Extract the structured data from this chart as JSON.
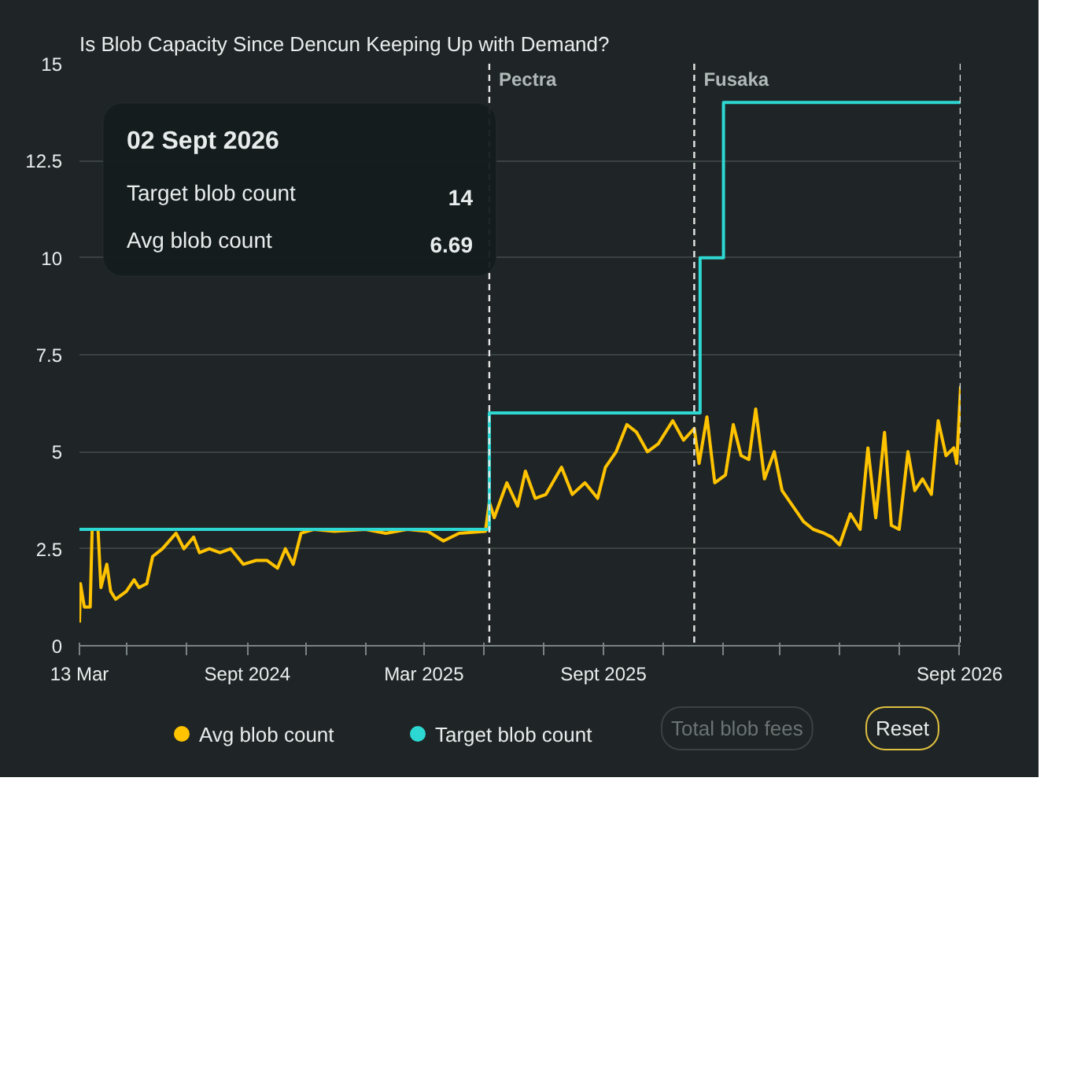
{
  "chart_data": {
    "type": "line",
    "title": "Is Blob Capacity Since Dencun Keeping Up with Demand?",
    "xlim": [
      "2024-03-13",
      "2026-09-02"
    ],
    "xticks": [
      {
        "value": "2024-03-13",
        "label": "13 Mar"
      },
      {
        "value": "2024-05-01",
        "label": null
      },
      {
        "value": "2024-07-01",
        "label": null
      },
      {
        "value": "2024-09-01",
        "label": "Sept 2024"
      },
      {
        "value": "2024-11-01",
        "label": null
      },
      {
        "value": "2025-01-01",
        "label": null
      },
      {
        "value": "2025-03-01",
        "label": "Mar 2025"
      },
      {
        "value": "2025-05-01",
        "label": null
      },
      {
        "value": "2025-07-01",
        "label": null
      },
      {
        "value": "2025-09-01",
        "label": "Sept 2025"
      },
      {
        "value": "2025-11-01",
        "label": null
      },
      {
        "value": "2026-01-01",
        "label": null
      },
      {
        "value": "2026-03-01",
        "label": null
      },
      {
        "value": "2026-05-01",
        "label": null
      },
      {
        "value": "2026-07-01",
        "label": null
      },
      {
        "value": "2026-09-01",
        "label": "Sept 2026"
      }
    ],
    "ylim": [
      0,
      15
    ],
    "yticks": [
      0,
      2.5,
      5,
      7.5,
      10,
      12.5,
      15
    ],
    "grid": "y",
    "legend": "bottom",
    "ref_lines": [
      {
        "axis": "x",
        "value": "2025-05-07",
        "label": "Pectra",
        "color": "#e6e6e6",
        "line_style": "dashed"
      },
      {
        "axis": "x",
        "value": "2025-12-03",
        "label": "Fusaka",
        "color": "#e6e6e6",
        "line_style": "dashed"
      },
      {
        "axis": "x",
        "value": "2026-09-02",
        "label": null,
        "color": "#e6e6e6",
        "line_style": "dashed"
      }
    ],
    "annotations": [
      "02 Sept 2026",
      "Target blob count",
      "14",
      "Avg blob count",
      "6.69",
      "Total blob fees",
      "Reset"
    ],
    "series": [
      {
        "name": "Avg blob count",
        "color": "#ffc300",
        "type": "line",
        "x": [
          "2024-03-13",
          "2024-03-14",
          "2024-03-18",
          "2024-03-24",
          "2024-03-26",
          "2024-04-01",
          "2024-04-04",
          "2024-04-10",
          "2024-04-14",
          "2024-04-19",
          "2024-04-30",
          "2024-05-08",
          "2024-05-13",
          "2024-05-21",
          "2024-05-27",
          "2024-06-06",
          "2024-06-20",
          "2024-06-28",
          "2024-07-08",
          "2024-07-14",
          "2024-07-24",
          "2024-08-04",
          "2024-08-15",
          "2024-08-28",
          "2024-09-10",
          "2024-09-21",
          "2024-10-02",
          "2024-10-10",
          "2024-10-18",
          "2024-10-26",
          "2024-11-08",
          "2024-11-29",
          "2024-12-31",
          "2025-01-21",
          "2025-02-12",
          "2025-03-05",
          "2025-03-21",
          "2025-04-06",
          "2025-05-03",
          "2025-05-07",
          "2025-05-12",
          "2025-05-25",
          "2025-06-05",
          "2025-06-13",
          "2025-06-23",
          "2025-07-04",
          "2025-07-20",
          "2025-07-31",
          "2025-08-13",
          "2025-08-26",
          "2025-09-03",
          "2025-09-14",
          "2025-09-25",
          "2025-10-05",
          "2025-10-16",
          "2025-10-27",
          "2025-11-11",
          "2025-11-22",
          "2025-12-03",
          "2025-12-08",
          "2025-12-16",
          "2025-12-24",
          "2026-01-04",
          "2026-01-12",
          "2026-01-20",
          "2026-01-28",
          "2026-02-04",
          "2026-02-13",
          "2026-02-23",
          "2026-03-03",
          "2026-03-14",
          "2026-03-25",
          "2026-04-04",
          "2026-04-15",
          "2026-04-23",
          "2026-05-01",
          "2026-05-12",
          "2026-05-22",
          "2026-05-30",
          "2026-06-07",
          "2026-06-16",
          "2026-06-23",
          "2026-07-01",
          "2026-07-10",
          "2026-07-17",
          "2026-07-25",
          "2026-08-03",
          "2026-08-10",
          "2026-08-18",
          "2026-08-26",
          "2026-08-29",
          "2026-09-02"
        ],
        "values": [
          0.6,
          1.6,
          1.0,
          1.0,
          3.0,
          3.0,
          1.5,
          2.1,
          1.4,
          1.2,
          1.4,
          1.7,
          1.5,
          1.6,
          2.3,
          2.5,
          2.9,
          2.5,
          2.8,
          2.4,
          2.5,
          2.4,
          2.5,
          2.1,
          2.2,
          2.2,
          2.0,
          2.5,
          2.1,
          2.9,
          3.0,
          2.95,
          3.0,
          2.9,
          3.0,
          2.95,
          2.7,
          2.9,
          2.95,
          3.7,
          3.3,
          4.2,
          3.6,
          4.5,
          3.8,
          3.9,
          4.6,
          3.9,
          4.2,
          3.8,
          4.6,
          5.0,
          5.7,
          5.5,
          5.0,
          5.2,
          5.8,
          5.3,
          5.6,
          4.7,
          5.9,
          4.2,
          4.4,
          5.7,
          4.9,
          4.8,
          6.1,
          4.3,
          5.0,
          4.0,
          3.6,
          3.2,
          3.0,
          2.9,
          2.8,
          2.6,
          3.4,
          3.0,
          5.1,
          3.3,
          5.5,
          3.1,
          3.0,
          5.0,
          4.0,
          4.3,
          3.9,
          5.8,
          4.9,
          5.1,
          4.7,
          6.69
        ]
      },
      {
        "name": "Target blob count",
        "color": "#2ed8d2",
        "type": "step",
        "x": [
          "2024-03-13",
          "2025-05-07",
          "2025-12-09",
          "2026-01-02",
          "2026-09-02"
        ],
        "values": [
          3,
          6,
          10,
          14,
          14
        ]
      }
    ]
  }
}
